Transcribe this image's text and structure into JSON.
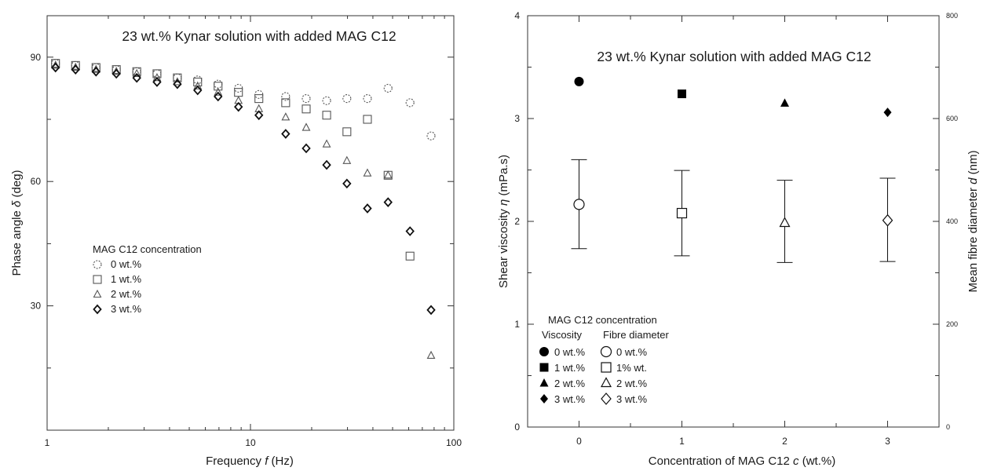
{
  "chart_data": [
    {
      "type": "scatter",
      "title": "23 wt.% Kynar solution with added MAG C12",
      "xlabel": "Frequency f (Hz)",
      "ylabel": "Phase angle δ (deg)",
      "xscale": "log",
      "xlim": [
        1,
        100
      ],
      "ylim": [
        0,
        100
      ],
      "xticks": [
        "1",
        "10",
        "100"
      ],
      "yticks": [
        "30",
        "60",
        "90"
      ],
      "legend_title": "MAG C12 concentration",
      "legend_position": "center-left",
      "x": [
        1.1,
        1.38,
        1.74,
        2.19,
        2.76,
        3.47,
        4.37,
        5.5,
        6.93,
        8.73,
        11.0,
        14.9,
        18.8,
        23.7,
        29.8,
        37.6,
        47.5,
        60.9,
        77.3
      ],
      "series": [
        {
          "name": "0 wt.%",
          "marker": "dashed-circle",
          "values": [
            88.5,
            88.0,
            87.5,
            87.0,
            86.5,
            86.0,
            85.0,
            84.5,
            83.5,
            82.5,
            81.0,
            80.5,
            80.0,
            79.5,
            80.0,
            80.0,
            82.5,
            79.0,
            71.0
          ]
        },
        {
          "name": "1 wt.%",
          "marker": "square",
          "values": [
            88.5,
            88.0,
            87.5,
            87.0,
            86.5,
            86.0,
            85.0,
            84.0,
            83.0,
            81.5,
            80.0,
            79.0,
            77.5,
            76.0,
            72.0,
            75.0,
            61.5,
            42.0,
            null
          ]
        },
        {
          "name": "2 wt.%",
          "marker": "triangle",
          "values": [
            88.0,
            87.5,
            87.0,
            86.5,
            86.0,
            85.0,
            84.0,
            83.0,
            81.5,
            79.5,
            77.5,
            75.5,
            73.0,
            69.0,
            65.0,
            62.0,
            61.5,
            null,
            18.0
          ]
        },
        {
          "name": "3 wt.%",
          "marker": "diamond",
          "values": [
            87.5,
            87.0,
            86.5,
            86.0,
            85.0,
            84.0,
            83.5,
            82.0,
            80.5,
            78.0,
            76.0,
            71.5,
            68.0,
            64.0,
            59.5,
            53.5,
            55.0,
            48.0,
            29.0
          ]
        }
      ]
    },
    {
      "type": "scatter",
      "title": "23 wt.% Kynar solution with added MAG C12",
      "xlabel": "Concentration of MAG C12 c (wt.%)",
      "ylabel": "Shear viscosity η (mPa.s)",
      "y2label": "Mean fibre diameter d (nm)",
      "xlim": [
        -0.5,
        3.5
      ],
      "ylim": [
        0,
        4
      ],
      "y2lim": [
        0,
        800
      ],
      "xticks": [
        "0",
        "1",
        "2",
        "3"
      ],
      "yticks": [
        "0",
        "1",
        "2",
        "3",
        "4"
      ],
      "y2ticks": [
        "0",
        "200",
        "400",
        "600",
        "800"
      ],
      "legend_title": "MAG C12 concentration",
      "legend_position": "bottom-left",
      "legend_col1": "Viscosity",
      "legend_col2": "Fibre diameter",
      "viscosity": [
        {
          "c": 0,
          "value": 3.36,
          "marker": "filled-circle",
          "label": "0 wt.%"
        },
        {
          "c": 1,
          "value": 3.24,
          "marker": "filled-square",
          "label": "1 wt.%"
        },
        {
          "c": 2,
          "value": 3.15,
          "marker": "filled-triangle",
          "label": "2 wt.%"
        },
        {
          "c": 3,
          "value": 3.06,
          "marker": "filled-diamond",
          "label": "3 wt.%"
        }
      ],
      "fibre_diameter": [
        {
          "c": 0,
          "value": 433,
          "low": 347,
          "high": 520,
          "marker": "open-circle",
          "label": "0 wt.%"
        },
        {
          "c": 1,
          "value": 416,
          "low": 333,
          "high": 499,
          "marker": "open-square",
          "label": "1% wt."
        },
        {
          "c": 2,
          "value": 397,
          "low": 320,
          "high": 480,
          "marker": "open-triangle",
          "label": "2 wt.%"
        },
        {
          "c": 3,
          "value": 402,
          "low": 322,
          "high": 484,
          "marker": "open-diamond",
          "label": "3 wt.%"
        }
      ]
    }
  ]
}
